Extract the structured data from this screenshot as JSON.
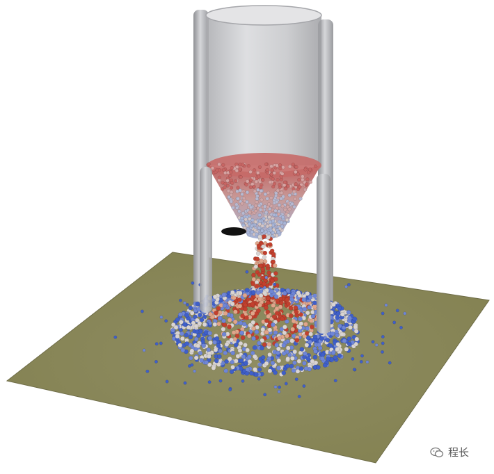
{
  "scene": {
    "description_colors": {
      "background": "#ffffff",
      "floor": "#8c8a60",
      "floor_edge": "#6f6d48",
      "silo_body": "#c9cacd",
      "silo_rim": "#e8e8ea",
      "leg": "#bdbec1",
      "leg_shade": "#8f9094",
      "hopper_particles_top": "#c0605e",
      "hopper_particles_bottom": "#a4b2d6",
      "hot_particle": "#c2402e",
      "warm_particle": "#e0a58a",
      "neutral_particle": "#d9d4d2",
      "cool_particle": "#6f86d6",
      "cold_particle": "#3f5fc9",
      "shadow": "#111111"
    },
    "icons": [
      "wechat-icon"
    ]
  },
  "watermark": {
    "text": "程长"
  }
}
